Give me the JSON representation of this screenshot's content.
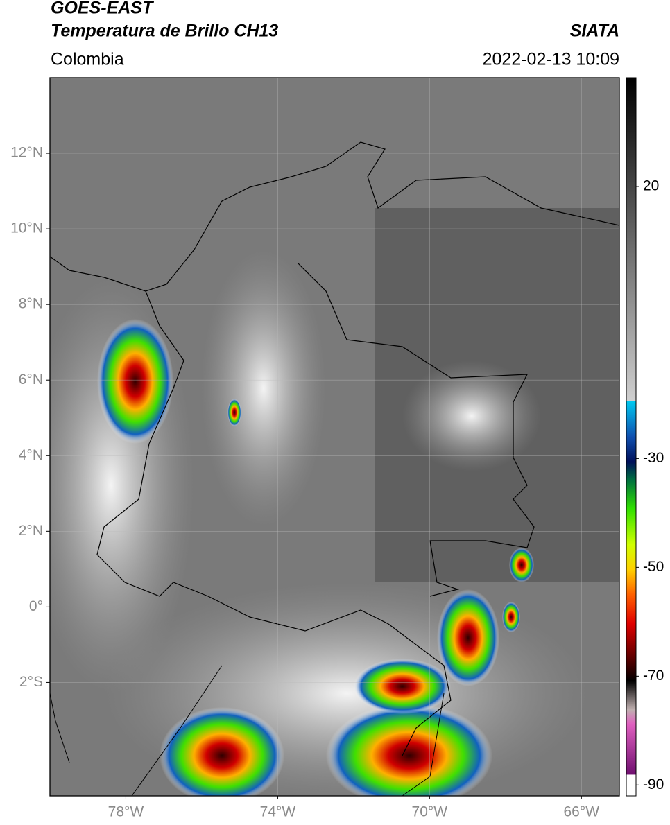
{
  "header": {
    "title": "GOES-EAST",
    "subtitle": "Temperatura de Brillo CH13",
    "source": "SIATA",
    "region": "Colombia",
    "datetime": "2022-02-13 10:09"
  },
  "map": {
    "xlim": [
      -80,
      -65
    ],
    "ylim": [
      -5,
      14
    ],
    "grid": true,
    "xticks": [
      {
        "value": -78,
        "label": "78°W"
      },
      {
        "value": -74,
        "label": "74°W"
      },
      {
        "value": -70,
        "label": "70°W"
      },
      {
        "value": -66,
        "label": "66°W"
      }
    ],
    "yticks": [
      {
        "value": 12,
        "label": "12°N"
      },
      {
        "value": 10,
        "label": "10°N"
      },
      {
        "value": 8,
        "label": "8°N"
      },
      {
        "value": 6,
        "label": "6°N"
      },
      {
        "value": 4,
        "label": "4°N"
      },
      {
        "value": 2,
        "label": "2°N"
      },
      {
        "value": 0,
        "label": "0°"
      },
      {
        "value": -2,
        "label": "2°S"
      }
    ]
  },
  "colorbar": {
    "lim": [
      -92,
      40
    ],
    "ticks": [
      20,
      -30,
      -50,
      -70,
      -90
    ]
  }
}
